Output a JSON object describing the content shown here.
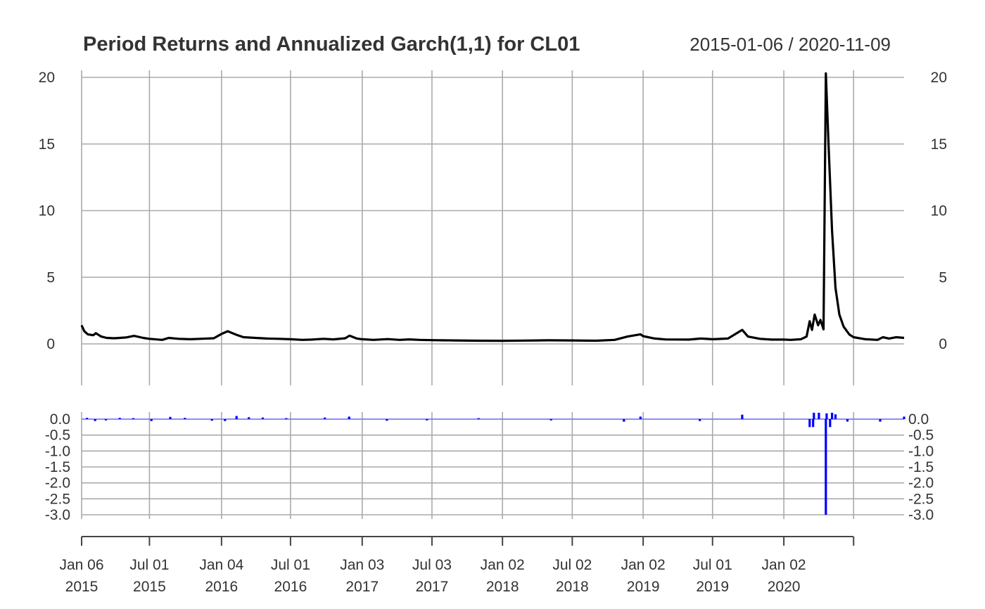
{
  "chart_data": {
    "type": "line",
    "title": "Period Returns and Annualized Garch(1,1) for CL01",
    "date_range": "2015-01-06 / 2020-11-09",
    "x_tick_labels": [
      {
        "date": "2015-01-06",
        "month": "Jan 06",
        "year": "2015"
      },
      {
        "date": "2015-07-01",
        "month": "Jul 01",
        "year": "2015"
      },
      {
        "date": "2016-01-04",
        "month": "Jan 04",
        "year": "2016"
      },
      {
        "date": "2016-07-01",
        "month": "Jul 01",
        "year": "2016"
      },
      {
        "date": "2017-01-03",
        "month": "Jan 03",
        "year": "2017"
      },
      {
        "date": "2017-07-03",
        "month": "Jul 03",
        "year": "2017"
      },
      {
        "date": "2018-01-02",
        "month": "Jan 02",
        "year": "2018"
      },
      {
        "date": "2018-07-02",
        "month": "Jul 02",
        "year": "2018"
      },
      {
        "date": "2019-01-02",
        "month": "Jan 02",
        "year": "2019"
      },
      {
        "date": "2019-07-01",
        "month": "Jul 01",
        "year": "2019"
      },
      {
        "date": "2020-01-02",
        "month": "Jan 02",
        "year": "2020"
      },
      {
        "date": "2020-07-01",
        "month": "",
        "year": ""
      }
    ],
    "panels": [
      {
        "name": "garch",
        "ylim": [
          -3,
          20.5
        ],
        "y_ticks": [
          "20",
          "15",
          "10",
          "5",
          "0"
        ],
        "y_tick_values": [
          20,
          15,
          10,
          5,
          0
        ],
        "line_color": "#000000",
        "series": [
          {
            "points": [
              [
                "2015-01-06",
                1.4
              ],
              [
                "2015-01-13",
                0.95
              ],
              [
                "2015-01-22",
                0.72
              ],
              [
                "2015-02-05",
                0.65
              ],
              [
                "2015-02-12",
                0.8
              ],
              [
                "2015-02-26",
                0.55
              ],
              [
                "2015-03-12",
                0.45
              ],
              [
                "2015-04-01",
                0.42
              ],
              [
                "2015-05-01",
                0.48
              ],
              [
                "2015-05-22",
                0.6
              ],
              [
                "2015-06-15",
                0.45
              ],
              [
                "2015-07-01",
                0.38
              ],
              [
                "2015-08-03",
                0.3
              ],
              [
                "2015-08-20",
                0.45
              ],
              [
                "2015-09-15",
                0.38
              ],
              [
                "2015-10-15",
                0.35
              ],
              [
                "2015-11-10",
                0.38
              ],
              [
                "2015-12-15",
                0.42
              ],
              [
                "2016-01-04",
                0.75
              ],
              [
                "2016-01-20",
                0.95
              ],
              [
                "2016-02-10",
                0.7
              ],
              [
                "2016-03-01",
                0.5
              ],
              [
                "2016-04-01",
                0.45
              ],
              [
                "2016-05-01",
                0.4
              ],
              [
                "2016-06-01",
                0.38
              ],
              [
                "2016-07-01",
                0.35
              ],
              [
                "2016-08-01",
                0.3
              ],
              [
                "2016-08-25",
                0.32
              ],
              [
                "2016-09-25",
                0.38
              ],
              [
                "2016-10-20",
                0.34
              ],
              [
                "2016-11-20",
                0.42
              ],
              [
                "2016-12-01",
                0.62
              ],
              [
                "2016-12-20",
                0.4
              ],
              [
                "2017-01-03",
                0.35
              ],
              [
                "2017-02-01",
                0.3
              ],
              [
                "2017-03-10",
                0.36
              ],
              [
                "2017-04-10",
                0.3
              ],
              [
                "2017-05-05",
                0.34
              ],
              [
                "2017-06-01",
                0.3
              ],
              [
                "2017-07-03",
                0.28
              ],
              [
                "2017-09-01",
                0.26
              ],
              [
                "2017-11-01",
                0.24
              ],
              [
                "2018-01-02",
                0.23
              ],
              [
                "2018-03-01",
                0.25
              ],
              [
                "2018-05-01",
                0.27
              ],
              [
                "2018-07-02",
                0.26
              ],
              [
                "2018-09-01",
                0.24
              ],
              [
                "2018-10-20",
                0.3
              ],
              [
                "2018-11-22",
                0.55
              ],
              [
                "2018-12-26",
                0.72
              ],
              [
                "2019-01-02",
                0.58
              ],
              [
                "2019-02-01",
                0.4
              ],
              [
                "2019-03-01",
                0.33
              ],
              [
                "2019-05-01",
                0.32
              ],
              [
                "2019-06-01",
                0.4
              ],
              [
                "2019-07-01",
                0.35
              ],
              [
                "2019-08-10",
                0.4
              ],
              [
                "2019-09-16",
                1.05
              ],
              [
                "2019-10-01",
                0.55
              ],
              [
                "2019-11-01",
                0.38
              ],
              [
                "2019-12-01",
                0.32
              ],
              [
                "2020-01-02",
                0.32
              ],
              [
                "2020-01-20",
                0.3
              ],
              [
                "2020-02-15",
                0.35
              ],
              [
                "2020-03-01",
                0.55
              ],
              [
                "2020-03-09",
                1.7
              ],
              [
                "2020-03-15",
                1.05
              ],
              [
                "2020-03-22",
                2.2
              ],
              [
                "2020-03-31",
                1.4
              ],
              [
                "2020-04-06",
                1.8
              ],
              [
                "2020-04-14",
                1.1
              ],
              [
                "2020-04-20",
                20.3
              ],
              [
                "2020-04-27",
                15.0
              ],
              [
                "2020-05-06",
                8.5
              ],
              [
                "2020-05-15",
                4.2
              ],
              [
                "2020-05-25",
                2.2
              ],
              [
                "2020-06-05",
                1.3
              ],
              [
                "2020-06-20",
                0.7
              ],
              [
                "2020-07-01",
                0.5
              ],
              [
                "2020-08-01",
                0.35
              ],
              [
                "2020-09-01",
                0.3
              ],
              [
                "2020-09-15",
                0.5
              ],
              [
                "2020-10-01",
                0.4
              ],
              [
                "2020-10-20",
                0.5
              ],
              [
                "2020-11-09",
                0.45
              ]
            ]
          }
        ]
      },
      {
        "name": "returns",
        "ylim": [
          -3.0,
          0.25
        ],
        "y_ticks": [
          "0.0",
          "-0.5",
          "-1.0",
          "-1.5",
          "-2.0",
          "-2.5",
          "-3.0"
        ],
        "y_tick_values": [
          0.0,
          -0.5,
          -1.0,
          -1.5,
          -2.0,
          -2.5,
          -3.0
        ],
        "bar_color": "#0000ff",
        "series": [
          {
            "points": [
              [
                "2015-01-20",
                0.04
              ],
              [
                "2015-02-10",
                -0.06
              ],
              [
                "2015-03-10",
                -0.04
              ],
              [
                "2015-04-15",
                0.04
              ],
              [
                "2015-05-20",
                0.03
              ],
              [
                "2015-07-06",
                -0.06
              ],
              [
                "2015-08-24",
                0.07
              ],
              [
                "2015-10-01",
                0.04
              ],
              [
                "2015-12-10",
                -0.05
              ],
              [
                "2016-01-13",
                -0.06
              ],
              [
                "2016-02-12",
                0.1
              ],
              [
                "2016-03-15",
                0.06
              ],
              [
                "2016-04-20",
                0.05
              ],
              [
                "2016-06-20",
                0.03
              ],
              [
                "2016-09-28",
                0.05
              ],
              [
                "2016-11-30",
                0.08
              ],
              [
                "2017-03-08",
                -0.05
              ],
              [
                "2017-06-20",
                -0.04
              ],
              [
                "2017-11-01",
                0.03
              ],
              [
                "2018-05-08",
                -0.04
              ],
              [
                "2018-11-13",
                -0.08
              ],
              [
                "2018-12-26",
                0.08
              ],
              [
                "2019-05-29",
                -0.06
              ],
              [
                "2019-09-16",
                0.14
              ],
              [
                "2020-03-09",
                -0.25
              ],
              [
                "2020-03-18",
                -0.25
              ],
              [
                "2020-03-20",
                0.2
              ],
              [
                "2020-04-02",
                0.2
              ],
              [
                "2020-04-20",
                -3.0
              ],
              [
                "2020-04-22",
                0.18
              ],
              [
                "2020-05-01",
                -0.25
              ],
              [
                "2020-05-06",
                0.2
              ],
              [
                "2020-05-15",
                0.15
              ],
              [
                "2020-06-15",
                -0.08
              ],
              [
                "2020-09-08",
                -0.08
              ],
              [
                "2020-11-09",
                0.08
              ]
            ]
          }
        ]
      }
    ]
  }
}
